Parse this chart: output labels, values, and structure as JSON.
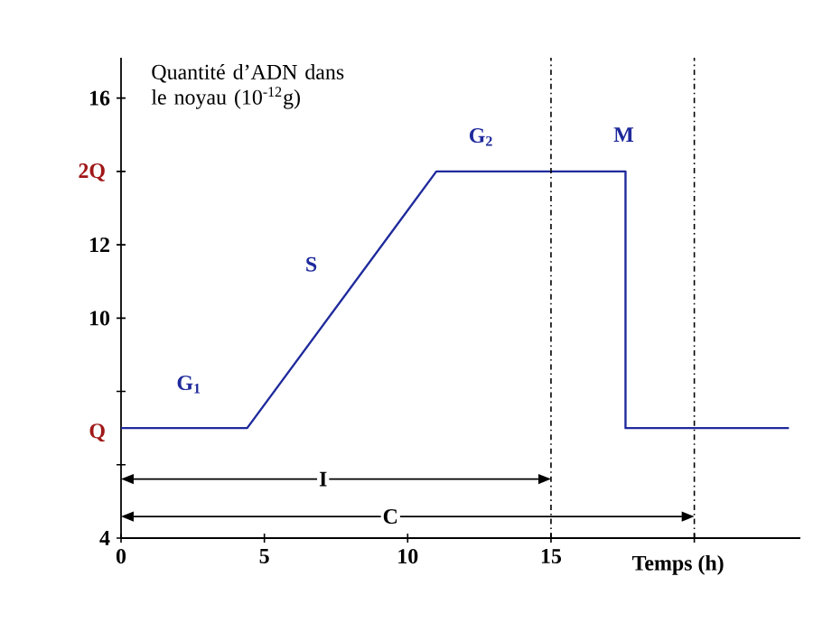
{
  "chart_data": {
    "type": "line",
    "xlabel": "Temps (h)",
    "ylabel": "Quantité d’ADN dans le noyau (10$^{-12}$g)",
    "series": [
      {
        "color": "#1f2a9c",
        "x": [
          0,
          4.4,
          11,
          17.6,
          17.6,
          23.3
        ],
        "values": [
          7,
          7,
          14,
          14,
          7,
          7
        ]
      }
    ],
    "xlim": [
      0,
      23.7
    ],
    "ylim": [
      4,
      17.1
    ],
    "xticks": [
      0,
      5,
      10,
      15,
      {
        "value": 20,
        "label": null
      }
    ],
    "yticks": [
      4,
      {
        "value": 6,
        "label": null
      },
      {
        "value": 8,
        "label": null
      },
      10,
      12,
      {
        "value": 14,
        "label": null
      },
      16
    ],
    "ref_lines": [
      {
        "axis": "x",
        "value": 15,
        "line_style": "dashdotted"
      },
      {
        "axis": "x",
        "value": 20,
        "line_style": "dashdotted"
      }
    ],
    "annotations": [
      "G$_{1}$",
      "S",
      "G$_{2}$",
      "M",
      "I",
      "C",
      "Q",
      "2Q"
    ]
  }
}
